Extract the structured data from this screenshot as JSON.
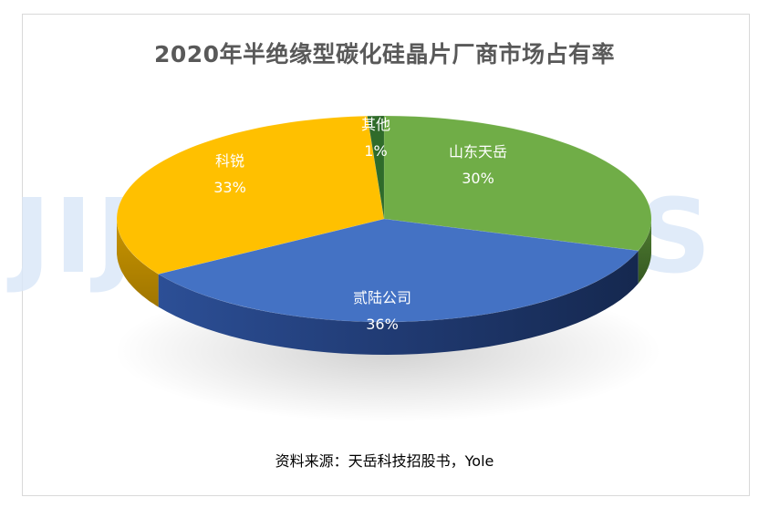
{
  "chart_data": {
    "type": "pie",
    "title": "2020年半绝缘型碳化硅晶片厂商市场占有率",
    "slices": [
      {
        "name": "山东天岳",
        "value": 30,
        "label": "30%",
        "color": "#70ad47"
      },
      {
        "name": "贰陆公司",
        "value": 36,
        "label": "36%",
        "color": "#4472c4"
      },
      {
        "name": "科锐",
        "value": 33,
        "label": "33%",
        "color": "#ffc000"
      },
      {
        "name": "其他",
        "value": 1,
        "label": "1%",
        "color": "#2f6b2a"
      }
    ],
    "style": "3d-exploded-none",
    "legend": "none"
  },
  "watermark": "JIJINSIGHTS",
  "source": "资料来源：天岳科技招股书，Yole"
}
